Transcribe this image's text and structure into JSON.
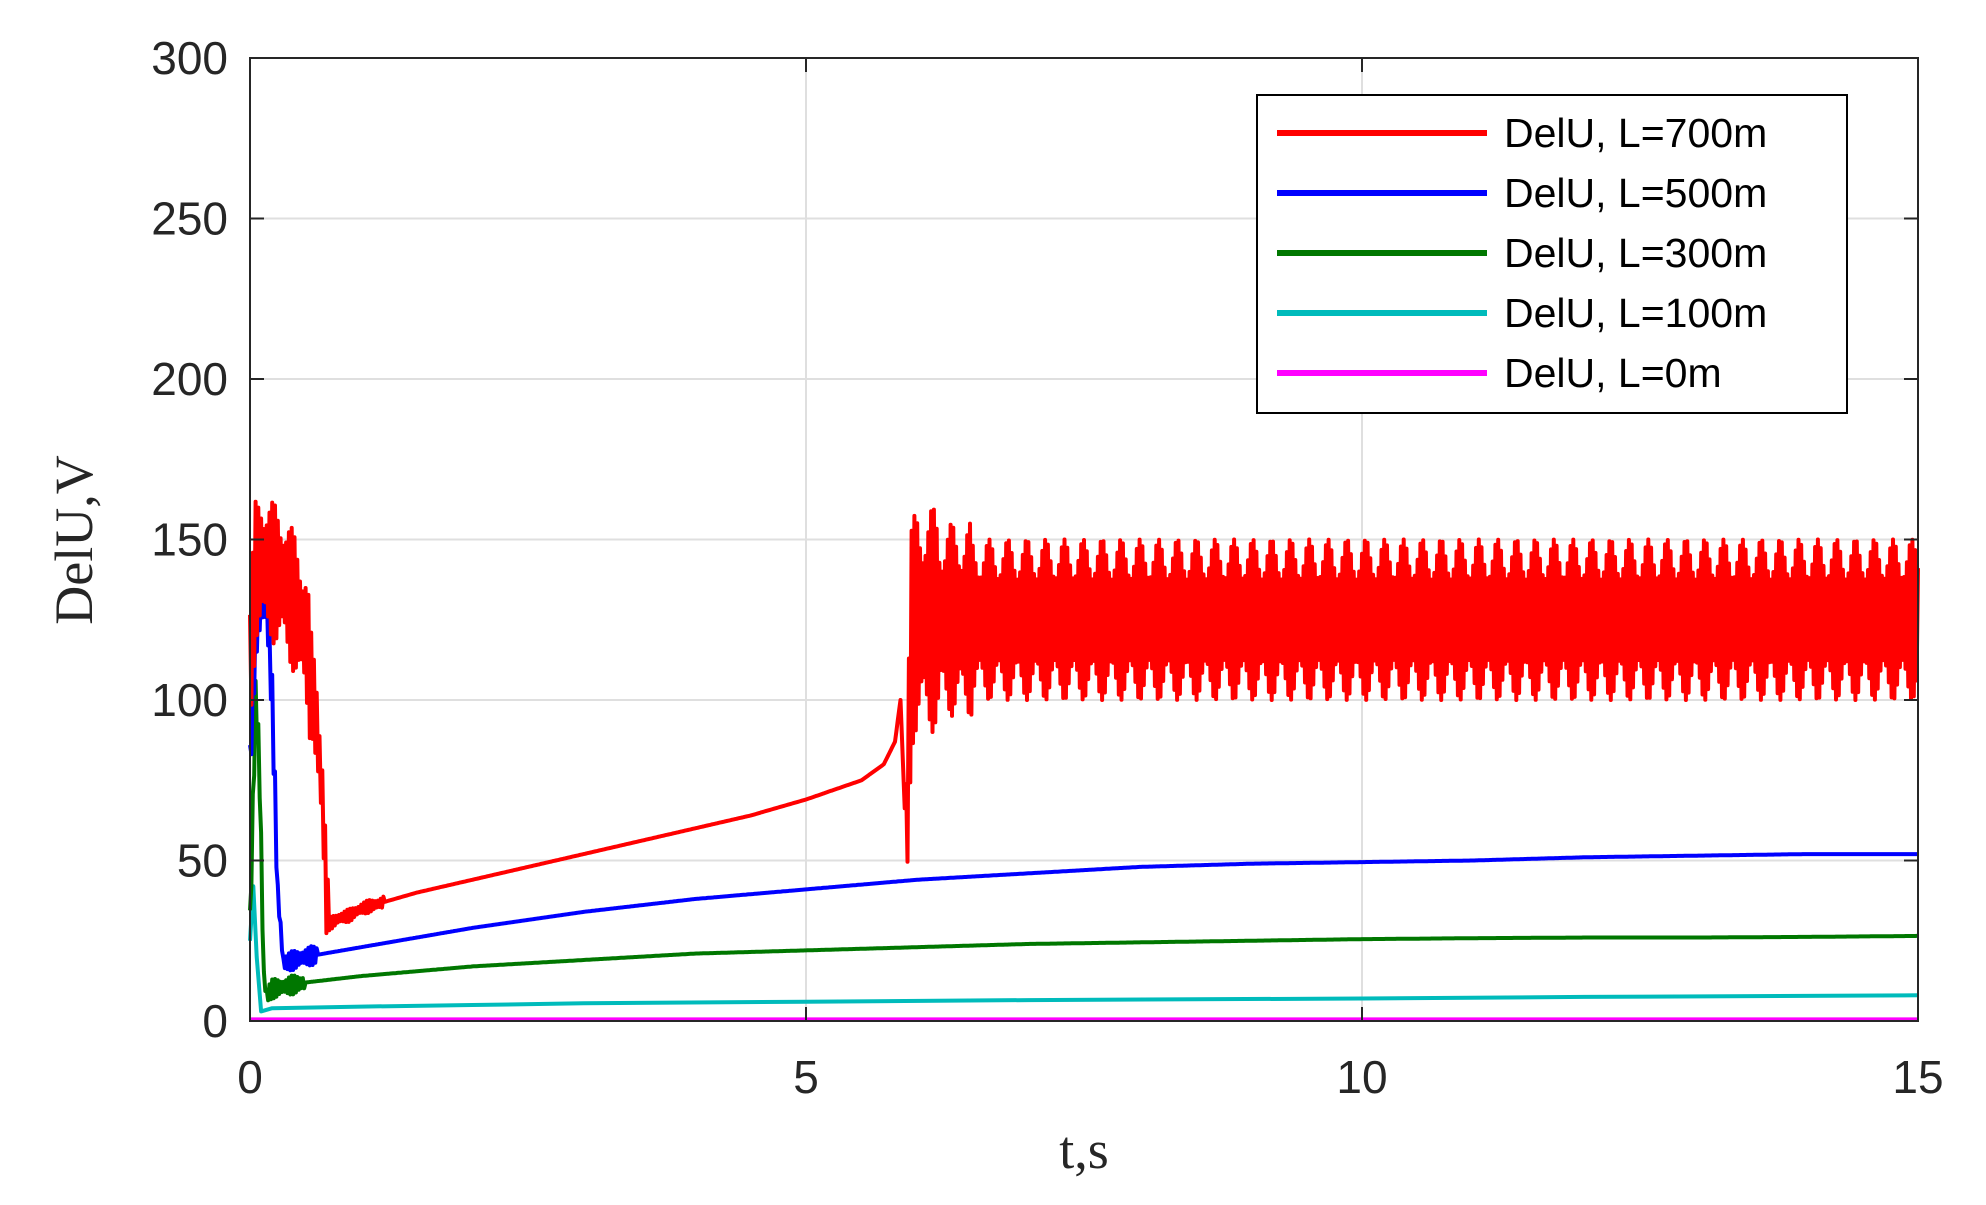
{
  "chart_data": {
    "type": "line",
    "title": "",
    "xlabel": "t,s",
    "ylabel": "DelU,V",
    "xlim": [
      0,
      15
    ],
    "ylim": [
      0,
      300
    ],
    "xticks": [
      0,
      5,
      10,
      15
    ],
    "yticks": [
      0,
      50,
      100,
      150,
      200,
      250,
      300
    ],
    "grid": true,
    "legend_position": "top-right",
    "series": [
      {
        "name": "DelU, L=700m",
        "color": "#ff0000",
        "x": [
          0,
          0.05,
          0.1,
          0.2,
          0.3,
          0.4,
          0.5,
          0.6,
          0.65,
          0.7,
          0.8,
          0.9,
          1.0,
          1.5,
          2.0,
          2.5,
          3.0,
          3.5,
          4.0,
          4.5,
          5.0,
          5.5,
          5.7,
          5.8,
          5.85,
          5.9,
          5.95,
          6.0,
          6.2,
          6.5,
          7.0,
          15.0
        ],
        "y": [
          110,
          140,
          143,
          140,
          137,
          130,
          120,
          92,
          70,
          30,
          32,
          33,
          35,
          40,
          44,
          48,
          52,
          56,
          60,
          64,
          69,
          75,
          80,
          87,
          100,
          55,
          120,
          125,
          125,
          125,
          125,
          125
        ],
        "noise": [
          [
            0.0,
            0.55,
            22
          ],
          [
            0.55,
            0.7,
            15
          ],
          [
            0.7,
            1.2,
            2
          ],
          [
            5.9,
            6.2,
            35
          ],
          [
            6.2,
            6.5,
            30
          ],
          [
            6.5,
            15.0,
            25
          ]
        ]
      },
      {
        "name": "DelU, L=500m",
        "color": "#0000ff",
        "x": [
          0,
          0.05,
          0.1,
          0.15,
          0.2,
          0.25,
          0.3,
          0.5,
          1.0,
          2.0,
          3.0,
          4.0,
          5.0,
          6.0,
          7.0,
          8.0,
          9.0,
          10.0,
          11.0,
          12.0,
          13.0,
          14.0,
          15.0
        ],
        "y": [
          80,
          120,
          130,
          130,
          100,
          40,
          18,
          20,
          23,
          29,
          34,
          38,
          41,
          44,
          46,
          48,
          49,
          49.5,
          50,
          51,
          51.5,
          52,
          52
        ],
        "noise": [
          [
            0.0,
            0.25,
            8
          ],
          [
            0.25,
            0.6,
            3
          ]
        ]
      },
      {
        "name": "DelU, L=300m",
        "color": "#007700",
        "x": [
          0,
          0.05,
          0.08,
          0.1,
          0.12,
          0.15,
          0.2,
          0.5,
          1.0,
          2.0,
          3.0,
          4.0,
          5.0,
          6.0,
          7.0,
          8.0,
          9.0,
          10.0,
          11.0,
          12.0,
          13.0,
          14.0,
          15.0
        ],
        "y": [
          30,
          100,
          85,
          55,
          15,
          8,
          10,
          12,
          14,
          17,
          19,
          21,
          22,
          23,
          24,
          24.5,
          25,
          25.5,
          25.8,
          26,
          26,
          26.2,
          26.5
        ],
        "noise": [
          [
            0.0,
            0.1,
            6
          ],
          [
            0.1,
            0.5,
            3
          ]
        ]
      },
      {
        "name": "DelU, L=100m",
        "color": "#00bbbb",
        "x": [
          0,
          0.03,
          0.06,
          0.1,
          0.2,
          1.0,
          2.0,
          3.0,
          5.0,
          7.0,
          10.0,
          12.0,
          15.0
        ],
        "y": [
          25,
          42,
          20,
          3,
          4,
          4.5,
          5,
          5.5,
          6,
          6.5,
          7,
          7.5,
          8
        ],
        "noise": []
      },
      {
        "name": "DelU, L=0m",
        "color": "#ff00ff",
        "x": [
          0,
          15
        ],
        "y": [
          0.5,
          0.5
        ],
        "noise": []
      }
    ]
  }
}
